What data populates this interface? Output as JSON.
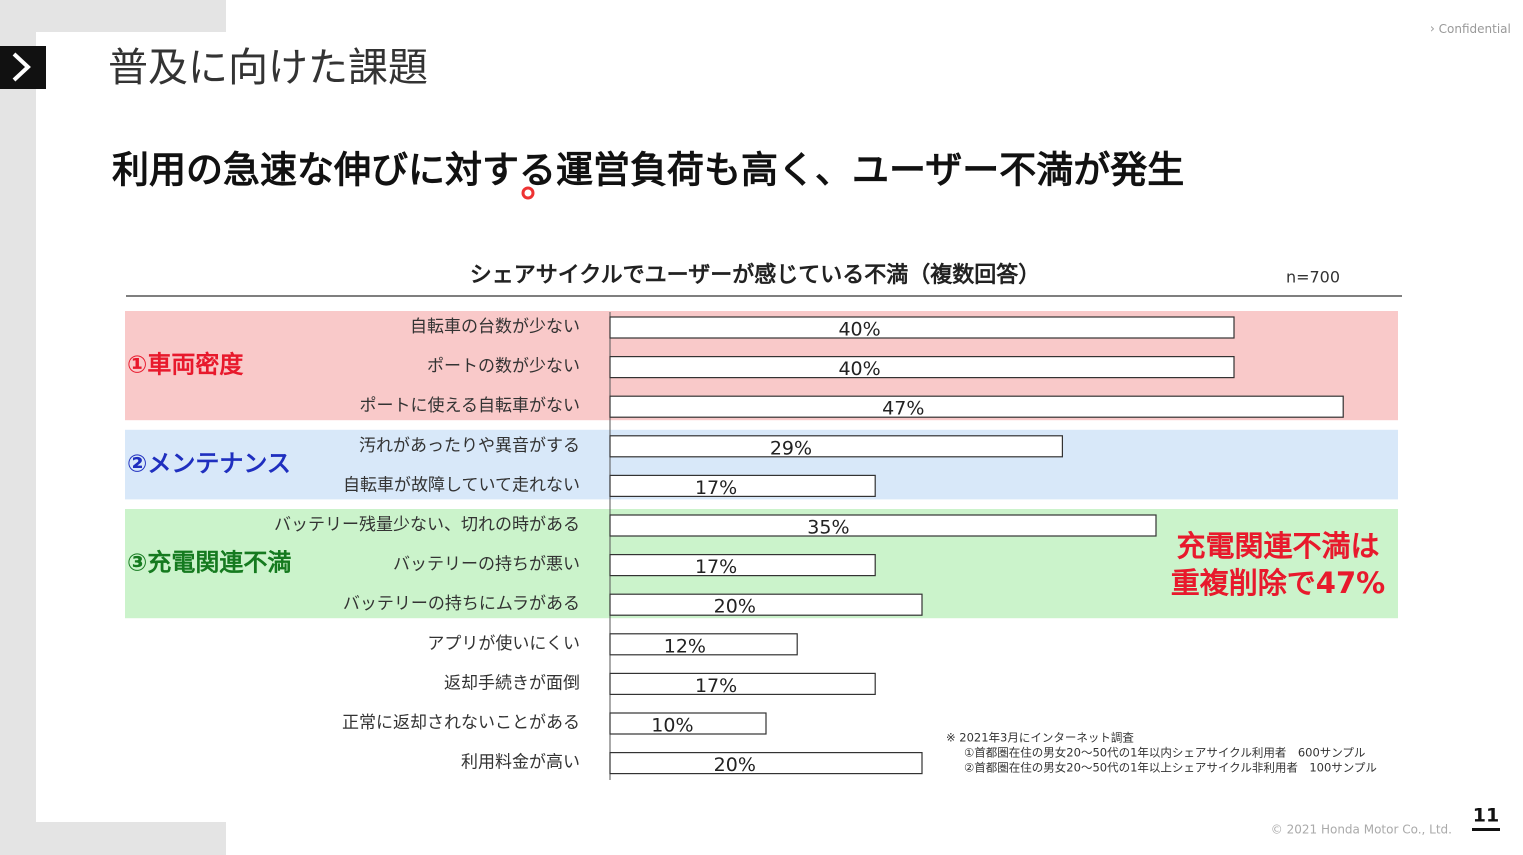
{
  "slide": {
    "heading": "普及に向けた課題",
    "message": "利用の急速な伸びに対する運営負荷も高く、ユーザー不満が発生",
    "confidential": "Confidential",
    "page": "11",
    "copyright": "© 2021 Honda Motor Co., Ltd."
  },
  "chart_data": {
    "type": "bar",
    "orientation": "horizontal",
    "title": "シェアサイクルでユーザーが感じている不満（複数回答）",
    "sample_size": "n=700",
    "categories": [
      "自転車の台数が少ない",
      "ポートの数が少ない",
      "ポートに使える自転車がない",
      "汚れがあったりや異音がする",
      "自転車が故障していて走れない",
      "バッテリー残量少ない、切れの時がある",
      "バッテリーの持ちが悪い",
      "バッテリーの持ちにムラがある",
      "アプリが使いにくい",
      "返却手続きが面倒",
      "正常に返却されないことがある",
      "利用料金が高い"
    ],
    "values": [
      40,
      40,
      47,
      29,
      17,
      35,
      17,
      20,
      12,
      17,
      10,
      20
    ],
    "value_labels": [
      "40%",
      "40%",
      "47%",
      "29%",
      "17%",
      "35%",
      "17%",
      "20%",
      "12%",
      "17%",
      "10%",
      "20%"
    ],
    "color": "#ffffff",
    "groups": [
      {
        "name": "①車両密度",
        "color": "#e8192c",
        "band": "#f9c9c9"
      },
      {
        "name": "②メンテナンス",
        "color": "#1f2fbf",
        "band": "#d8e8f9"
      },
      {
        "name": "③充電関連不満",
        "color": "#157a1f",
        "band": "#cbf3cb"
      }
    ],
    "annotation": [
      "充電関連不満は",
      "重複削除で47%"
    ],
    "footnote": [
      "※ 2021年3月にインターネット調査",
      "①首都圏在住の男女20～50代の1年以内シェアサイクル利用者　600サンプル",
      "②首都圏在住の男女20～50代の1年以上シェアサイクル非利用者　100サンプル"
    ]
  }
}
